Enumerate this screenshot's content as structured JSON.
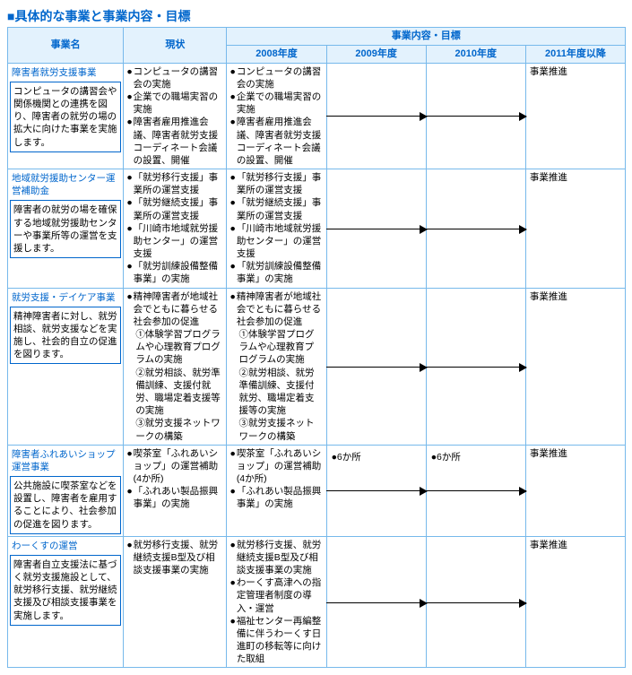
{
  "title": "■具体的な事業と事業内容・目標",
  "headers": {
    "name": "事業名",
    "status": "現状",
    "goals": "事業内容・目標",
    "y2008": "2008年度",
    "y2009": "2009年度",
    "y2010": "2010年度",
    "y2011": "2011年度以降"
  },
  "rows": [
    {
      "name_title": "障害者就労支援事業",
      "name_desc": "コンピュータの講習会や関係機関との連携を図り、障害者の就労の場の拡大に向けた事業を実施します。",
      "status": [
        "コンピュータの講習会の実施",
        "企業での職場実習の実施",
        "障害者雇用推進会議、障害者就労支援コーディネート会議の設置、開催"
      ],
      "y2008": [
        "コンピュータの講習会の実施",
        "企業での職場実習の実施",
        "障害者雇用推進会議、障害者就労支援コーディネート会議の設置、開催"
      ],
      "final": "事業推進"
    },
    {
      "name_title": "地域就労援助センター運営補助金",
      "name_desc": "障害者の就労の場を確保する地域就労援助センターや事業所等の運営を支援します。",
      "status": [
        "「就労移行支援」事業所の運営支援",
        "「就労継続支援」事業所の運営支援",
        "「川崎市地域就労援助センター」の運営支援",
        "「就労訓練設備整備事業」の実施"
      ],
      "y2008": [
        "「就労移行支援」事業所の運営支援",
        "「就労継続支援」事業所の運営支援",
        "「川崎市地域就労援助センター」の運営支援",
        "「就労訓練設備整備事業」の実施"
      ],
      "final": "事業推進"
    },
    {
      "name_title": "就労支援・デイケア事業",
      "name_desc": "精神障害者に対し、就労相談、就労支援などを実施し、社会的自立の促進を図ります。",
      "status": [
        "精神障害者が地域社会でともに暮らせる社会参加の促進"
      ],
      "status_sub": [
        "①体験学習プログラムや心理教育プログラムの実施",
        "②就労相談、就労準備訓練、支援付就労、職場定着支援等の実施",
        "③就労支援ネットワークの構築"
      ],
      "y2008": [
        "精神障害者が地域社会でともに暮らせる社会参加の促進"
      ],
      "y2008_sub": [
        "①体験学習プログラムや心理教育プログラムの実施",
        "②就労相談、就労準備訓練、支援付就労、職場定着支援等の実施",
        "③就労支援ネットワークの構築"
      ],
      "final": "事業推進"
    },
    {
      "name_title": "障害者ふれあいショップ運営事業",
      "name_desc": "公共施設に喫茶室などを設置し、障害者を雇用することにより、社会参加の促進を図ります。",
      "status": [
        "喫茶室「ふれあいショップ」の運営補助(4か所)",
        "「ふれあい製品振興事業」の実施"
      ],
      "y2008": [
        "喫茶室「ふれあいショップ」の運営補助(4か所)",
        "「ふれあい製品振興事業」の実施"
      ],
      "y2009_label": "●6か所",
      "y2010_label": "●6か所",
      "final": "事業推進"
    },
    {
      "name_title": "わーくすの運営",
      "name_desc": "障害者自立支援法に基づく就労支援施設として、就労移行支援、就労継続支援及び相談支援事業を実施します。",
      "status": [
        "就労移行支援、就労継続支援B型及び相談支援事業の実施"
      ],
      "y2008": [
        "就労移行支援、就労継続支援B型及び相談支援事業の実施",
        "わーくす高津への指定管理者制度の導入・運営",
        "福祉センター再編整備に伴うわーくす日進町の移転等に向けた取組"
      ],
      "final": "事業推進"
    }
  ]
}
